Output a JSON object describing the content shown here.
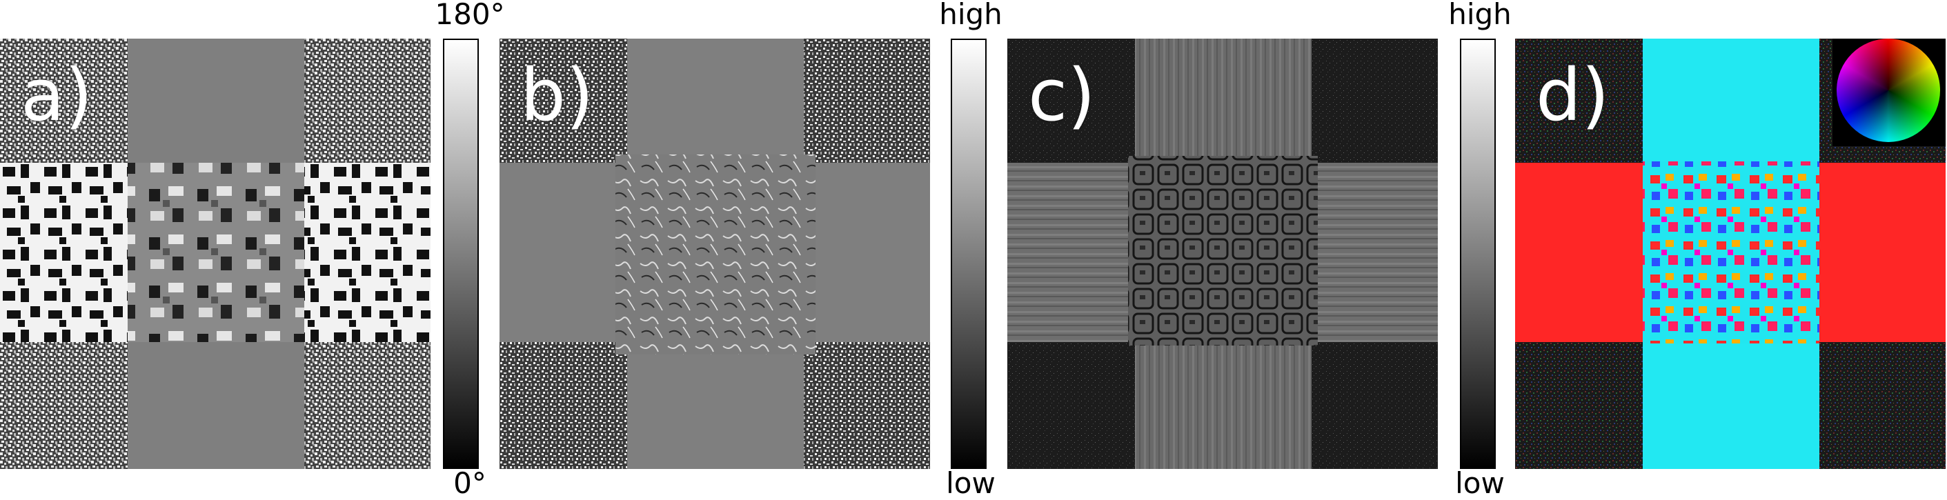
{
  "panels": [
    {
      "label": "a)"
    },
    {
      "label": "b)"
    },
    {
      "label": "c)"
    },
    {
      "label": "d)"
    }
  ],
  "colorbars": [
    {
      "top": "180°",
      "bottom": "0°"
    },
    {
      "top": "high",
      "bottom": "low"
    },
    {
      "top": "high",
      "bottom": "low"
    }
  ],
  "icons": {
    "color_wheel": "hue-wheel-icon"
  },
  "colors": {
    "red_band": "#ff2020",
    "cyan_band": "#20e8f0",
    "grey_band": "#7e7e7e",
    "dark_bg": "#202020"
  }
}
